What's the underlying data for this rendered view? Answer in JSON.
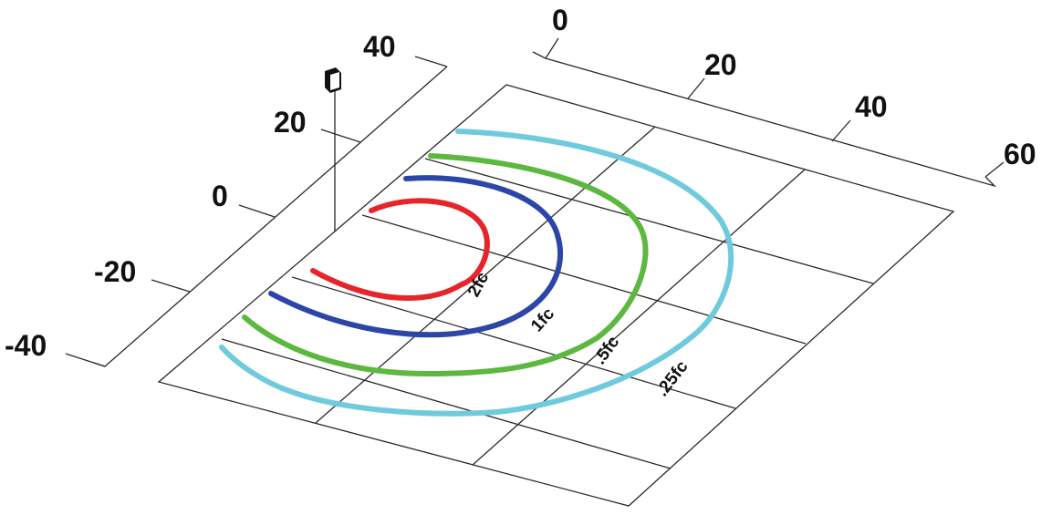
{
  "axes": {
    "top_ticks": [
      "0",
      "20",
      "40",
      "60"
    ],
    "left_ticks": [
      "40",
      "20",
      "0",
      "-20",
      "-40"
    ]
  },
  "contours": [
    {
      "label": "2fc",
      "color": "#e8242b"
    },
    {
      "label": "1fc",
      "color": "#2b46a6"
    },
    {
      "label": ".5fc",
      "color": "#5cb83e"
    },
    {
      "label": ".25fc",
      "color": "#6fcbdc"
    }
  ],
  "colors": {
    "grid": "#2a2a2a",
    "fixture": "#111111"
  },
  "fixture_icon": "light-fixture-icon"
}
